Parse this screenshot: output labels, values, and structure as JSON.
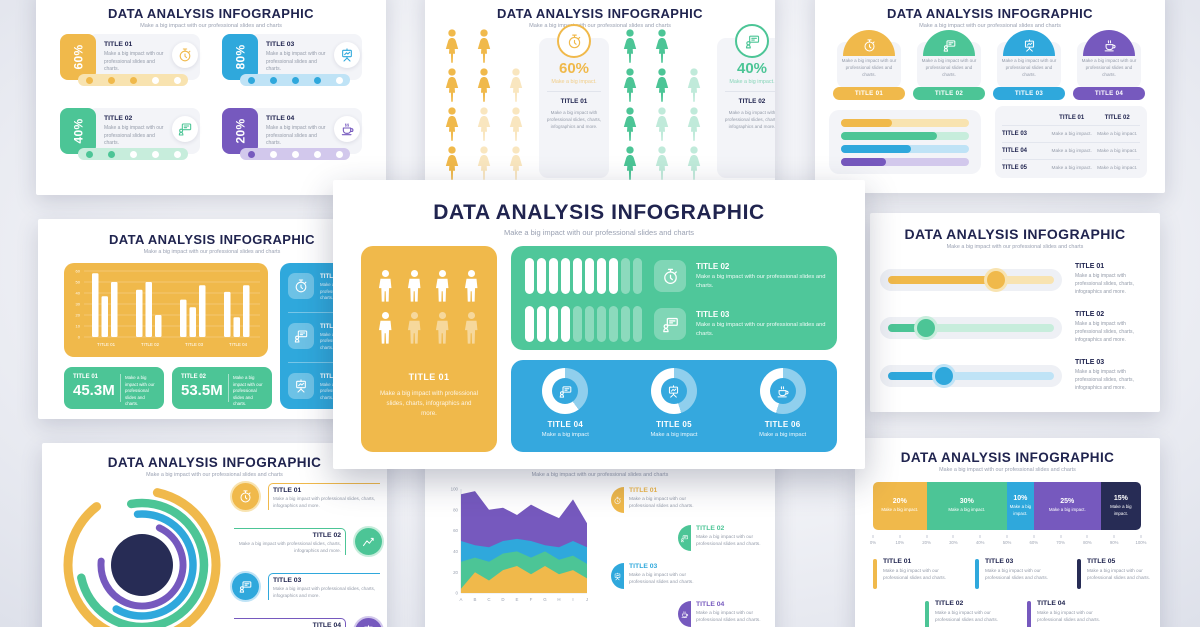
{
  "meta": {
    "title": "DATA ANALYSIS INFOGRAPHIC",
    "subtitle": "Make a big impact with our professional slides and charts"
  },
  "strings": {
    "impact": "Make a big impact",
    "impact_dot": "Make a big impact.",
    "desc_card": "Make a big impact with our professional slides and charts.",
    "desc_long": "Make a big impact with professional slides, charts, infographics and more."
  },
  "colors": {
    "yellow": "#f0b94b",
    "green": "#4cc596",
    "blue": "#2fa8dc",
    "purple": "#7659be",
    "navy": "#272c55",
    "title_navy": "#20244f",
    "text_gray": "#959caa",
    "panel_gray": "#f3f4f8",
    "center_green": "#4fc79a",
    "center_blue": "#35a8de"
  },
  "light_colors": {
    "yellow": "#f8e3b0",
    "green": "#c7eddc",
    "blue": "#bfe3f6",
    "purple": "#d2c8ec",
    "navy": "#c6c9da"
  },
  "slides": {
    "top_left": {
      "dots_total": 5,
      "cards": [
        {
          "pct": "60%",
          "label": "TITLE 01",
          "color": "yellow",
          "icon": "stopwatch-icon",
          "dots": 3
        },
        {
          "pct": "80%",
          "label": "TITLE 03",
          "color": "blue",
          "icon": "easel-icon",
          "dots": 4
        },
        {
          "pct": "40%",
          "label": "TITLE 02",
          "color": "green",
          "icon": "presentation-icon",
          "dots": 2
        },
        {
          "pct": "20%",
          "label": "TITLE 04",
          "color": "purple",
          "icon": "coffee-icon",
          "dots": 1
        }
      ]
    },
    "top_middle": {
      "pattern": [
        [
          1,
          1,
          0
        ],
        [
          1,
          1,
          0.35
        ],
        [
          1,
          0.35,
          0.35
        ],
        [
          1,
          0.35,
          0.35
        ]
      ],
      "groups": [
        {
          "pct": "60%",
          "lead": "Make a big impact.",
          "label": "TITLE 01",
          "color": "yellow",
          "icon": "stopwatch-icon"
        },
        {
          "pct": "40%",
          "lead": "Make a big impact.",
          "label": "TITLE 02",
          "color": "green",
          "icon": "presentation-icon"
        }
      ]
    },
    "top_right": {
      "arches": [
        {
          "label": "TITLE 01",
          "color": "yellow",
          "icon": "stopwatch-icon"
        },
        {
          "label": "TITLE 02",
          "color": "green",
          "icon": "presentation-icon"
        },
        {
          "label": "TITLE 03",
          "color": "blue",
          "icon": "easel-icon"
        },
        {
          "label": "TITLE 04",
          "color": "purple",
          "icon": "coffee-icon"
        }
      ],
      "bars": [
        {
          "color": "yellow",
          "value": 40
        },
        {
          "color": "green",
          "value": 75
        },
        {
          "color": "blue",
          "value": 55
        },
        {
          "color": "purple",
          "value": 35
        }
      ],
      "table": {
        "col_headers": [
          "TITLE 01",
          "TITLE 02"
        ],
        "row_headers": [
          "TITLE 03",
          "TITLE 04",
          "TITLE 05"
        ],
        "cell": "Make a big impact."
      }
    },
    "mid_left": {
      "bar_chart": {
        "ymax": 60,
        "yticks": [
          60,
          50,
          40,
          30,
          20,
          10,
          0
        ],
        "groups": [
          {
            "label": "TITLE 01",
            "values": [
              58,
              37,
              50
            ]
          },
          {
            "label": "TITLE 02",
            "values": [
              43,
              50,
              20
            ]
          },
          {
            "label": "TITLE 03",
            "values": [
              34,
              27,
              47
            ]
          },
          {
            "label": "TITLE 04",
            "values": [
              41,
              18,
              47
            ]
          }
        ]
      },
      "stats": [
        {
          "label": "TITLE 01",
          "value": "45.3M"
        },
        {
          "label": "TITLE 02",
          "value": "53.5M"
        }
      ],
      "side_items": [
        {
          "label": "TITLE 01",
          "icon": "stopwatch-icon"
        },
        {
          "label": "TITLE 02",
          "icon": "presentation-icon"
        },
        {
          "label": "TITLE 03",
          "icon": "easel-icon"
        }
      ]
    },
    "center": {
      "person_card": {
        "label": "TITLE 01",
        "rows": [
          [
            1,
            1,
            1,
            1
          ],
          [
            1,
            0.45,
            0.45,
            0.45
          ]
        ]
      },
      "green_items": [
        {
          "label": "TITLE 02",
          "icon": "stopwatch-icon",
          "filled": 8,
          "total": 10
        },
        {
          "label": "TITLE 03",
          "icon": "presentation-icon",
          "filled": 4,
          "total": 10
        }
      ],
      "donuts": [
        {
          "label": "TITLE 04",
          "icon": "presentation-icon",
          "white_pct": 60
        },
        {
          "label": "TITLE 05",
          "icon": "easel-icon",
          "white_pct": 55
        },
        {
          "label": "TITLE 06",
          "icon": "coffee-icon",
          "white_pct": 45
        }
      ]
    },
    "mid_right": {
      "sliders": [
        {
          "label": "TITLE 01",
          "color": "yellow",
          "value": 65
        },
        {
          "label": "TITLE 02",
          "color": "green",
          "value": 23
        },
        {
          "label": "TITLE 03",
          "color": "blue",
          "value": 34
        }
      ]
    },
    "bottom_left": {
      "arcs": [
        {
          "color": "yellow",
          "sweep": 310,
          "rot": -78
        },
        {
          "color": "green",
          "sweep": 268,
          "rot": -100
        },
        {
          "color": "blue",
          "sweep": 215,
          "rot": -95
        },
        {
          "color": "purple",
          "sweep": 250,
          "rot": -65
        }
      ],
      "items": [
        {
          "label": "TITLE 01",
          "color": "yellow",
          "icon": "stopwatch-icon",
          "side": "left"
        },
        {
          "label": "TITLE 02",
          "color": "green",
          "icon": "chart-icon",
          "side": "right"
        },
        {
          "label": "TITLE 03",
          "color": "blue",
          "icon": "presentation-icon",
          "side": "left"
        },
        {
          "label": "TITLE 04",
          "color": "purple",
          "icon": "easel-icon",
          "side": "right"
        }
      ]
    },
    "bottom_middle": {
      "area_chart": {
        "x": [
          "A",
          "B",
          "C",
          "D",
          "E",
          "F",
          "G",
          "H",
          "I",
          "J"
        ],
        "yticks": [
          100,
          80,
          60,
          40,
          20,
          0
        ],
        "tops": {
          "yellow": [
            4,
            20,
            12,
            22,
            26,
            18,
            26,
            18,
            22,
            14
          ],
          "green": [
            30,
            34,
            30,
            38,
            40,
            34,
            40,
            32,
            36,
            28
          ],
          "blue": [
            50,
            46,
            44,
            50,
            52,
            50,
            46,
            44,
            50,
            44
          ],
          "purple": [
            95,
            98,
            80,
            82,
            75,
            85,
            78,
            72,
            90,
            67
          ]
        }
      },
      "items": [
        {
          "label": "TITLE 01",
          "color": "yellow",
          "icon": "stopwatch-icon",
          "indent": 0
        },
        {
          "label": "TITLE 02",
          "color": "green",
          "icon": "presentation-icon",
          "indent": 1
        },
        {
          "label": "TITLE 03",
          "color": "blue",
          "icon": "easel-icon",
          "indent": 0
        },
        {
          "label": "TITLE 04",
          "color": "purple",
          "icon": "coffee-icon",
          "indent": 1
        }
      ]
    },
    "bottom_right": {
      "segments": [
        {
          "pct": "20%",
          "color": "yellow"
        },
        {
          "pct": "30%",
          "color": "green"
        },
        {
          "pct": "10%",
          "color": "blue"
        },
        {
          "pct": "25%",
          "color": "purple"
        },
        {
          "pct": "15%",
          "color": "navy"
        }
      ],
      "segment_desc": "Make a big impact.",
      "axis": [
        "0%",
        "10%",
        "20%",
        "30%",
        "40%",
        "50%",
        "60%",
        "70%",
        "80%",
        "90%",
        "100%"
      ],
      "legend": [
        {
          "label": "TITLE 01",
          "color": "yellow"
        },
        {
          "label": "TITLE 02",
          "color": "green"
        },
        {
          "label": "TITLE 03",
          "color": "blue"
        },
        {
          "label": "TITLE 04",
          "color": "purple"
        },
        {
          "label": "TITLE 05",
          "color": "navy"
        }
      ]
    }
  },
  "chart_data": [
    {
      "type": "bar",
      "title": "Grouped bar chart (middle-left slide)",
      "categories": [
        "TITLE 01",
        "TITLE 02",
        "TITLE 03",
        "TITLE 04"
      ],
      "series": [
        {
          "name": "bar1",
          "values": [
            58,
            43,
            34,
            41
          ]
        },
        {
          "name": "bar2",
          "values": [
            37,
            50,
            27,
            18
          ]
        },
        {
          "name": "bar3",
          "values": [
            50,
            20,
            47,
            47
          ]
        }
      ],
      "ylim": [
        0,
        60
      ],
      "yticks": [
        0,
        10,
        20,
        30,
        40,
        50,
        60
      ]
    },
    {
      "type": "area",
      "title": "Stacked area chart (bottom-middle slide)",
      "x": [
        "A",
        "B",
        "C",
        "D",
        "E",
        "F",
        "G",
        "H",
        "I",
        "J"
      ],
      "series": [
        {
          "name": "yellow",
          "values": [
            4,
            20,
            12,
            22,
            26,
            18,
            26,
            18,
            22,
            14
          ]
        },
        {
          "name": "green",
          "values": [
            30,
            34,
            30,
            38,
            40,
            34,
            40,
            32,
            36,
            28
          ]
        },
        {
          "name": "blue",
          "values": [
            50,
            46,
            44,
            50,
            52,
            50,
            46,
            44,
            50,
            44
          ]
        },
        {
          "name": "purple",
          "values": [
            95,
            98,
            80,
            82,
            75,
            85,
            78,
            72,
            90,
            67
          ]
        }
      ],
      "note": "values are cumulative stack tops",
      "ylim": [
        0,
        100
      ],
      "yticks": [
        0,
        20,
        40,
        60,
        80,
        100
      ]
    },
    {
      "type": "bar",
      "title": "100% stacked horizontal bar (bottom-right slide)",
      "orientation": "horizontal",
      "values": [
        20,
        30,
        10,
        25,
        15
      ],
      "labels": [
        "20%",
        "30%",
        "10%",
        "25%",
        "15%"
      ],
      "axis_ticks": [
        "0%",
        "10%",
        "20%",
        "30%",
        "40%",
        "50%",
        "60%",
        "70%",
        "80%",
        "90%",
        "100%"
      ]
    },
    {
      "type": "pie",
      "title": "Donut trio (center slide)",
      "labels": [
        "TITLE 04",
        "TITLE 05",
        "TITLE 06"
      ],
      "white_segment_pct": [
        60,
        55,
        45
      ]
    },
    {
      "type": "other",
      "title": "Radial arcs (bottom-left slide)",
      "sweep_degrees": {
        "yellow": 310,
        "green": 268,
        "blue": 215,
        "purple": 250
      }
    },
    {
      "type": "other",
      "title": "Percent cards (top-left slide)",
      "values": [
        "60%",
        "80%",
        "40%",
        "20%"
      ],
      "dots_filled": [
        3,
        4,
        2,
        1
      ],
      "dots_total": 5
    },
    {
      "type": "other",
      "title": "Pictograph (top-middle slide)",
      "values": [
        "60%",
        "40%"
      ]
    },
    {
      "type": "other",
      "title": "Progress bars (top-right slide)",
      "values_pct": [
        40,
        75,
        55,
        35
      ]
    },
    {
      "type": "other",
      "title": "Sliders (middle-right slide)",
      "values_pct": [
        65,
        23,
        34
      ]
    },
    {
      "type": "other",
      "title": "Capsule progress (center slide)",
      "filled": [
        8,
        4
      ],
      "total": 10
    }
  ]
}
